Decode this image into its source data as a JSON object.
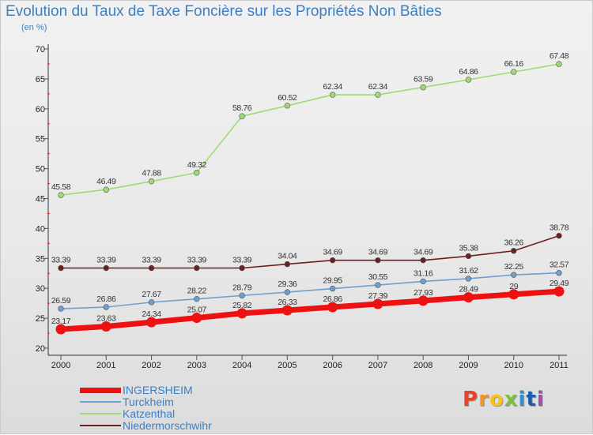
{
  "chart_data": {
    "type": "line",
    "title": "Evolution du Taux de Taxe Foncière sur les Propriétés Non Bâties",
    "ylabel": "(en %)",
    "xlabel": "",
    "x": [
      "2000",
      "2001",
      "2002",
      "2003",
      "2004",
      "2005",
      "2006",
      "2007",
      "2008",
      "2009",
      "2010",
      "2011"
    ],
    "ylim": [
      20,
      70
    ],
    "yticks": [
      20,
      25,
      30,
      35,
      40,
      45,
      50,
      55,
      60,
      65,
      70
    ],
    "grid": false,
    "legend_position": "bottom-left",
    "series": [
      {
        "name": "INGERSHEIM",
        "color": "#ee1111",
        "values": [
          23.17,
          23.63,
          24.34,
          25.07,
          25.82,
          26.33,
          26.86,
          27.39,
          27.93,
          28.49,
          29,
          29.49
        ],
        "labels": [
          "23.17",
          "23.63",
          "24.34",
          "25.07",
          "25.82",
          "26.33",
          "26.86",
          "27.39",
          "27.93",
          "28.49",
          "29",
          "29.49"
        ]
      },
      {
        "name": "Turckheim",
        "color": "#6f9fcf",
        "values": [
          26.59,
          26.86,
          27.67,
          28.22,
          28.79,
          29.36,
          29.95,
          30.55,
          31.16,
          31.62,
          32.25,
          32.57
        ],
        "labels": [
          "26.59",
          "26.86",
          "27.67",
          "28.22",
          "28.79",
          "29.36",
          "29.95",
          "30.55",
          "31.16",
          "31.62",
          "32.25",
          "32.57"
        ]
      },
      {
        "name": "Katzenthal",
        "color": "#9edc73",
        "values": [
          45.58,
          46.49,
          47.88,
          49.32,
          58.76,
          60.52,
          62.34,
          62.34,
          63.59,
          64.86,
          66.16,
          67.48
        ],
        "labels": [
          "45.58",
          "46.49",
          "47.88",
          "49.32",
          "58.76",
          "60.52",
          "62.34",
          "62.34",
          "63.59",
          "64.86",
          "66.16",
          "67.48"
        ]
      },
      {
        "name": "Niedermorschwihr",
        "color": "#6b1f1f",
        "values": [
          33.39,
          33.39,
          33.39,
          33.39,
          33.39,
          34.04,
          34.69,
          34.69,
          34.69,
          35.38,
          36.26,
          38.78
        ],
        "labels": [
          "33.39",
          "33.39",
          "33.39",
          "33.39",
          "33.39",
          "34.04",
          "34.69",
          "34.69",
          "34.69",
          "35.38",
          "36.26",
          "38.78"
        ]
      }
    ]
  },
  "logo": {
    "text": "Proxiti",
    "letter_colors": [
      "#e8412c",
      "#f29422",
      "#f6c21b",
      "#7bbf3a",
      "#2f8fd3",
      "#1e5aa8",
      "#9b4fb0"
    ]
  }
}
